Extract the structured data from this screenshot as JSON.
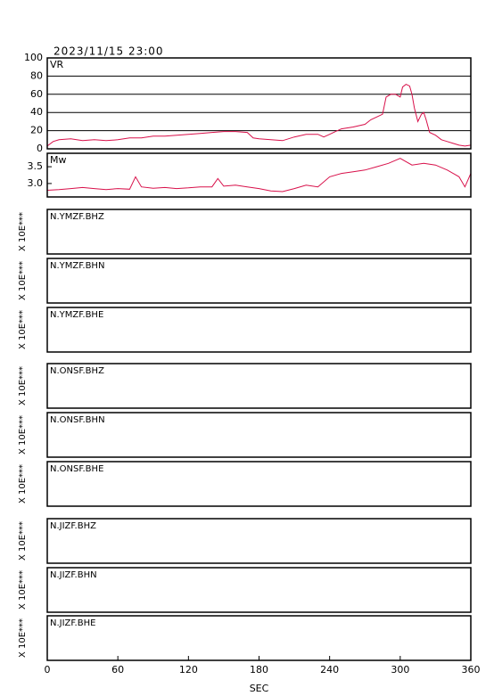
{
  "title": "2023/11/15 23:00",
  "chart_data": [
    {
      "type": "line",
      "title": "VR",
      "color": "#d8104a",
      "grid": true,
      "xlim": [
        0,
        360
      ],
      "ylim": [
        0,
        100
      ],
      "yticks": [
        0,
        20,
        40,
        60,
        80,
        100
      ],
      "x": [
        0,
        5,
        10,
        20,
        30,
        40,
        50,
        60,
        70,
        80,
        90,
        100,
        110,
        120,
        130,
        140,
        150,
        160,
        170,
        175,
        180,
        190,
        200,
        210,
        220,
        230,
        235,
        240,
        245,
        250,
        260,
        270,
        275,
        280,
        285,
        288,
        292,
        296,
        300,
        302,
        305,
        308,
        310,
        312,
        315,
        318,
        320,
        322,
        325,
        330,
        335,
        340,
        345,
        350,
        355,
        360
      ],
      "values": [
        3,
        8,
        10,
        11,
        9,
        10,
        9,
        10,
        12,
        12,
        14,
        14,
        15,
        16,
        17,
        18,
        19,
        19,
        18,
        12,
        11,
        10,
        9,
        13,
        16,
        16,
        13,
        16,
        19,
        22,
        24,
        27,
        32,
        35,
        38,
        57,
        60,
        60,
        57,
        68,
        71,
        69,
        60,
        45,
        30,
        38,
        40,
        32,
        18,
        15,
        10,
        8,
        6,
        4,
        3,
        4
      ]
    },
    {
      "type": "line",
      "title": "Mw",
      "color": "#d8104a",
      "grid": false,
      "xlim": [
        0,
        360
      ],
      "ylim": [
        2.6,
        3.9
      ],
      "yticks": [
        {
          "value": 3,
          "label": "3.0"
        },
        3.5
      ],
      "x": [
        0,
        10,
        20,
        30,
        40,
        50,
        60,
        70,
        75,
        80,
        90,
        100,
        110,
        120,
        130,
        140,
        145,
        150,
        160,
        170,
        180,
        190,
        200,
        210,
        220,
        230,
        240,
        250,
        260,
        270,
        280,
        290,
        300,
        310,
        320,
        330,
        340,
        350,
        355,
        360
      ],
      "values": [
        2.8,
        2.82,
        2.85,
        2.88,
        2.85,
        2.82,
        2.85,
        2.83,
        3.2,
        2.9,
        2.86,
        2.88,
        2.85,
        2.87,
        2.9,
        2.9,
        3.15,
        2.92,
        2.95,
        2.9,
        2.85,
        2.78,
        2.76,
        2.85,
        2.95,
        2.9,
        3.2,
        3.3,
        3.35,
        3.4,
        3.5,
        3.6,
        3.75,
        3.55,
        3.6,
        3.55,
        3.4,
        3.2,
        2.9,
        3.3
      ]
    }
  ],
  "xaxis": {
    "label": "SEC",
    "xlim": [
      0,
      360
    ],
    "xticks": [
      0,
      60,
      120,
      180,
      240,
      300,
      360
    ]
  },
  "panels": [
    {
      "channel": "N.YMZF.BHZ",
      "scale_label": "X 10E***"
    },
    {
      "channel": "N.YMZF.BHN",
      "scale_label": "X 10E***"
    },
    {
      "channel": "N.YMZF.BHE",
      "scale_label": "X 10E***"
    },
    {
      "channel": "N.ONSF.BHZ",
      "scale_label": "X 10E***"
    },
    {
      "channel": "N.ONSF.BHN",
      "scale_label": "X 10E***"
    },
    {
      "channel": "N.ONSF.BHE",
      "scale_label": "X 10E***"
    },
    {
      "channel": "N.JIZF.BHZ",
      "scale_label": "X 10E***"
    },
    {
      "channel": "N.JIZF.BHN",
      "scale_label": "X 10E***"
    },
    {
      "channel": "N.JIZF.BHE",
      "scale_label": "X 10E***"
    }
  ]
}
